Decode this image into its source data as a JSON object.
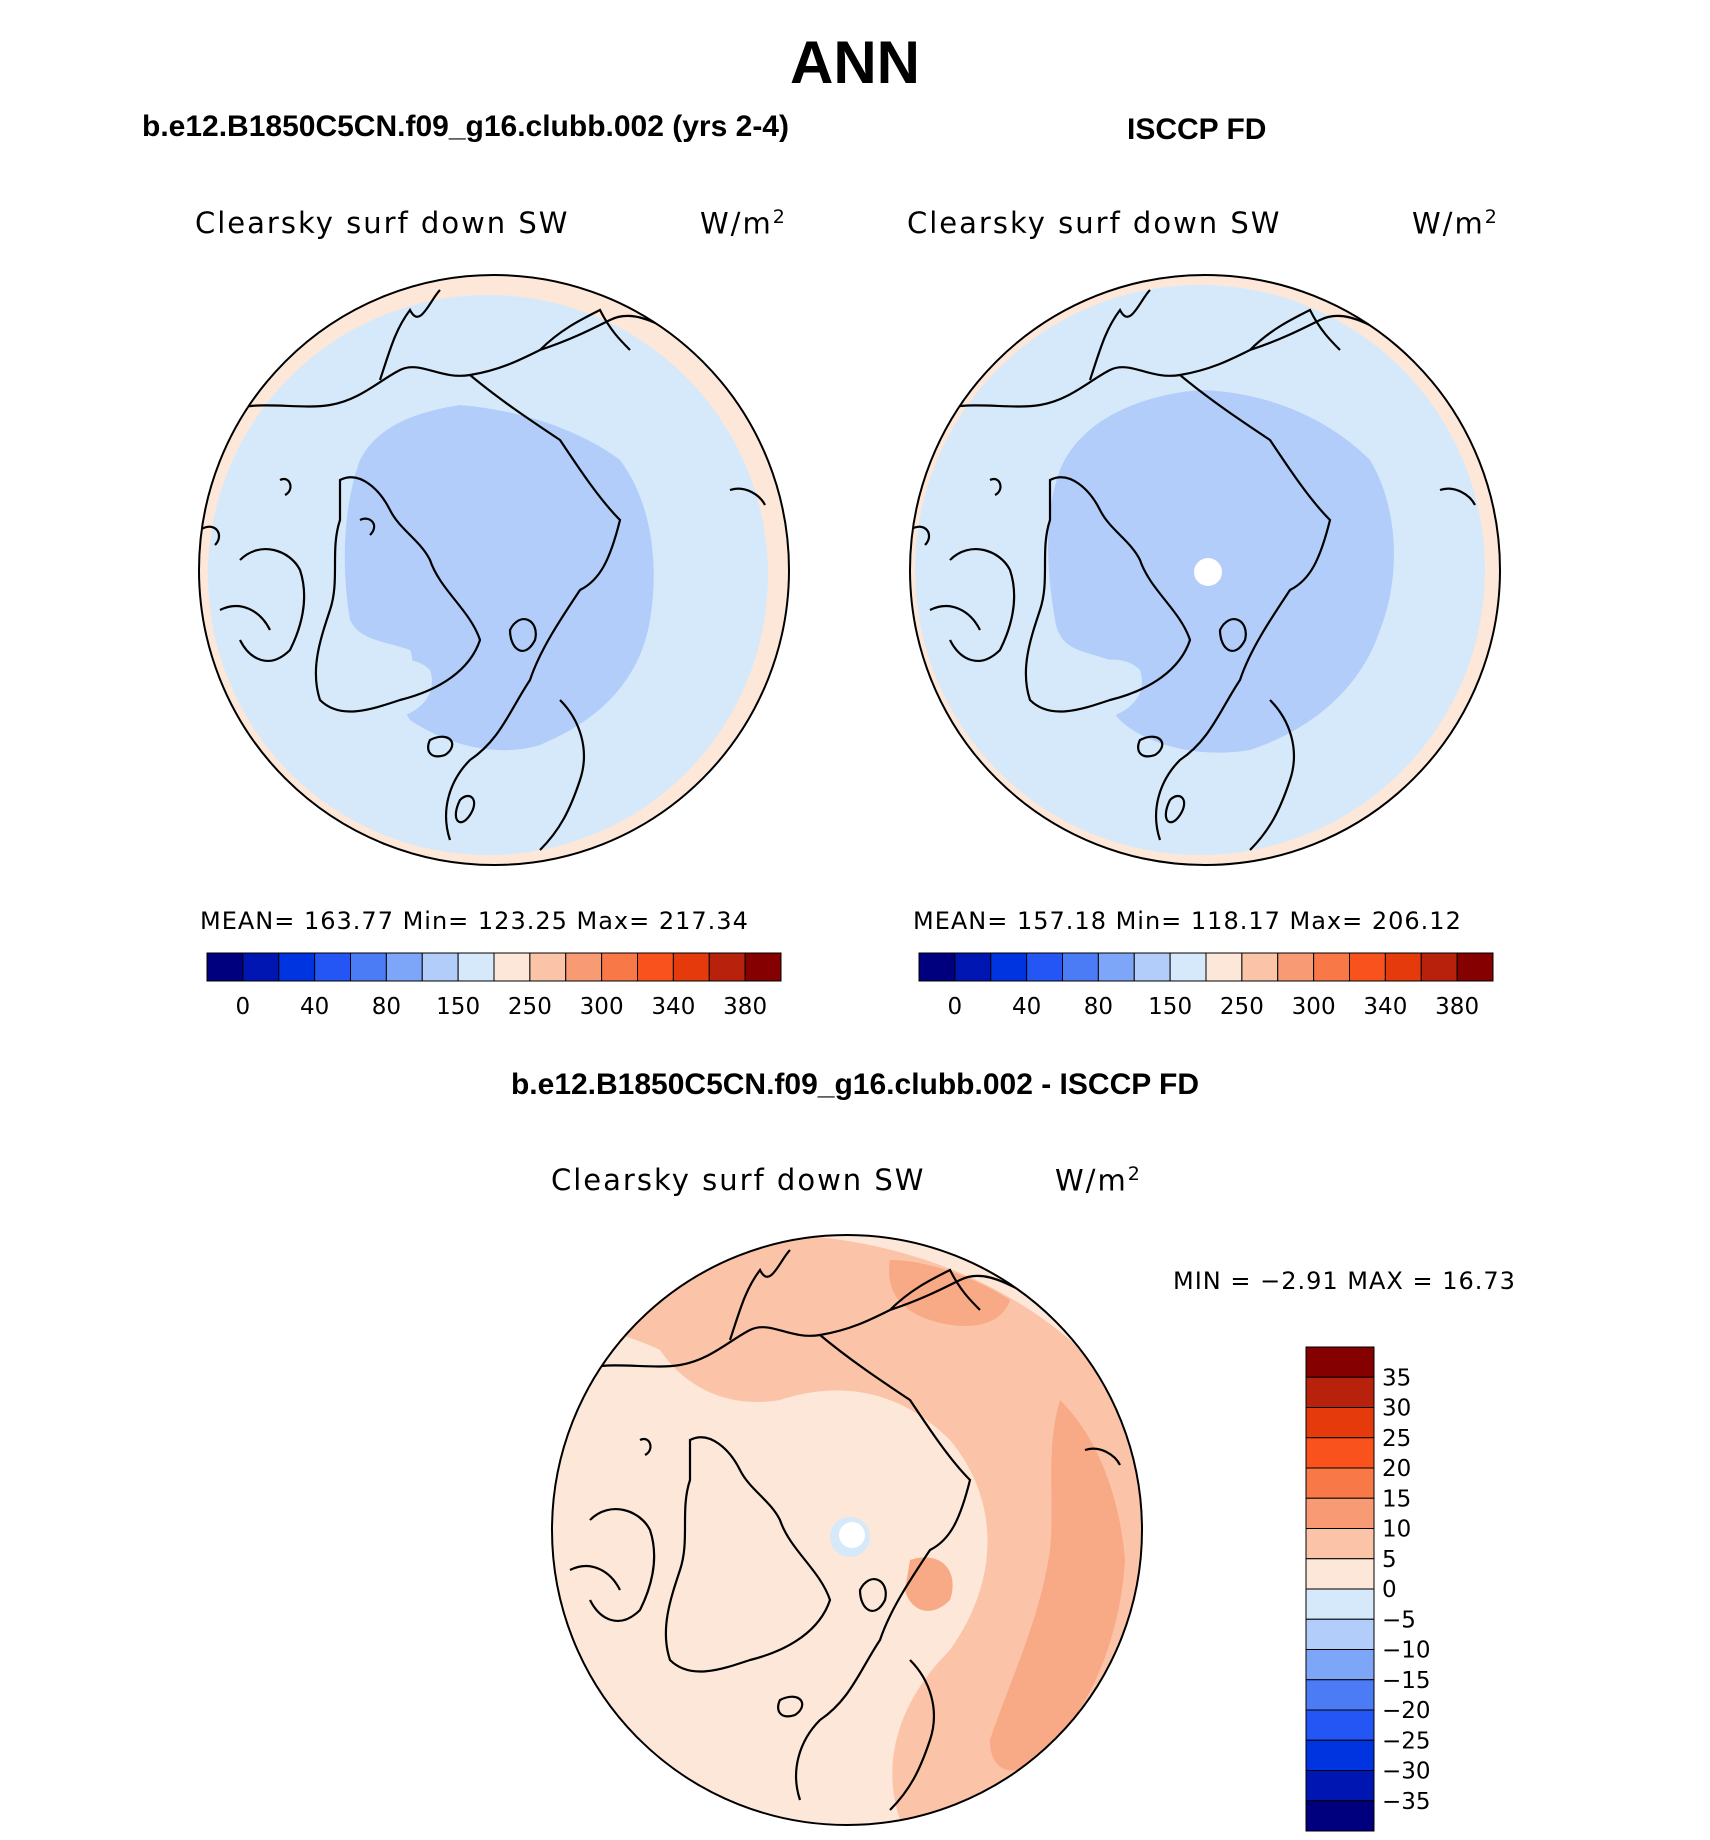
{
  "figure": {
    "title": "ANN",
    "panels": [
      {
        "title": "b.e12.B1850C5CN.f09_g16.clubb.002 (yrs 2-4)",
        "variable": "Clearsky surf down SW",
        "units_base": "W/m",
        "units_sup": "2",
        "stats": "MEAN=  163.77   Min=  123.25   Max=  217.34",
        "fill_outer": "#fce7d8",
        "fill_mid": "#d5e9fb",
        "fill_inner": "#b2cdf9"
      },
      {
        "title": "ISCCP FD",
        "variable": "Clearsky surf down SW",
        "units_base": "W/m",
        "units_sup": "2",
        "stats": "MEAN=  157.18   Min=  118.17   Max=  206.12",
        "fill_outer": "#fce7d8",
        "fill_mid": "#d5e9fb",
        "fill_inner": "#b2cdf9"
      },
      {
        "title": "b.e12.B1850C5CN.f09_g16.clubb.002 - ISCCP FD",
        "variable": "Clearsky surf down SW",
        "units_base": "W/m",
        "units_sup": "2",
        "stats": "MIN =   −2.91  MAX =   16.73",
        "fill_outer": "#fce7d8",
        "fill_mid": "#fbc3a7",
        "fill_inner": "#f8a985"
      }
    ]
  },
  "chart_data": [
    {
      "type": "heatmap",
      "projection": "north-polar-stereographic",
      "title": "b.e12.B1850C5CN.f09_g16.clubb.002 (yrs 2-4)",
      "variable": "Clearsky surf down SW",
      "units": "W/m2",
      "mean": 163.77,
      "min": 123.25,
      "max": 217.34,
      "colorbar": {
        "orientation": "horizontal",
        "tick_labels": [
          "0",
          "40",
          "80",
          "150",
          "250",
          "300",
          "340",
          "380"
        ],
        "colors": [
          "#00007f",
          "#0016b3",
          "#0034e0",
          "#2456f5",
          "#4c7cf5",
          "#7ea6f8",
          "#b2cdf9",
          "#d5e9fb",
          "#fce7d8",
          "#fbc3a7",
          "#f89a74",
          "#f97848",
          "#f9521c",
          "#e53a0b",
          "#b8210c",
          "#850000"
        ]
      }
    },
    {
      "type": "heatmap",
      "projection": "north-polar-stereographic",
      "title": "ISCCP FD",
      "variable": "Clearsky surf down SW",
      "units": "W/m2",
      "mean": 157.18,
      "min": 118.17,
      "max": 206.12,
      "colorbar": {
        "orientation": "horizontal",
        "tick_labels": [
          "0",
          "40",
          "80",
          "150",
          "250",
          "300",
          "340",
          "380"
        ],
        "colors": [
          "#00007f",
          "#0016b3",
          "#0034e0",
          "#2456f5",
          "#4c7cf5",
          "#7ea6f8",
          "#b2cdf9",
          "#d5e9fb",
          "#fce7d8",
          "#fbc3a7",
          "#f89a74",
          "#f97848",
          "#f9521c",
          "#e53a0b",
          "#b8210c",
          "#850000"
        ]
      }
    },
    {
      "type": "heatmap",
      "projection": "north-polar-stereographic",
      "title": "b.e12.B1850C5CN.f09_g16.clubb.002 - ISCCP FD",
      "variable": "Clearsky surf down SW",
      "units": "W/m2",
      "min": -2.91,
      "max": 16.73,
      "colorbar": {
        "orientation": "vertical",
        "tick_labels": [
          "35",
          "30",
          "25",
          "20",
          "15",
          "10",
          "5",
          "0",
          "−5",
          "−10",
          "−15",
          "−20",
          "−25",
          "−30",
          "−35"
        ],
        "colors": [
          "#850000",
          "#b8210c",
          "#e53a0b",
          "#f9521c",
          "#f97848",
          "#f89a74",
          "#fbc3a7",
          "#fce7d8",
          "#d5e9fb",
          "#b2cdf9",
          "#7ea6f8",
          "#4c7cf5",
          "#2456f5",
          "#0034e0",
          "#0016b3",
          "#00007f"
        ]
      }
    }
  ]
}
